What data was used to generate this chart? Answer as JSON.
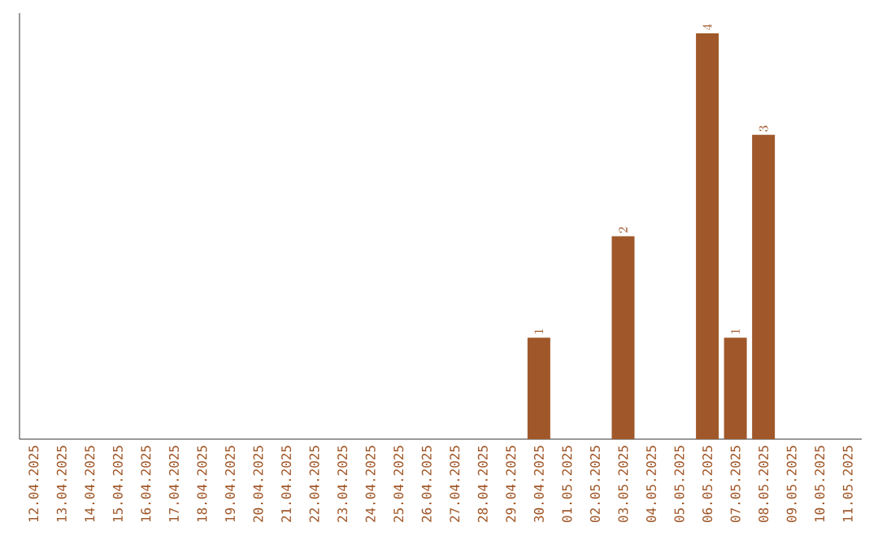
{
  "chart_data": {
    "type": "bar",
    "categories": [
      "12.04.2025",
      "13.04.2025",
      "14.04.2025",
      "15.04.2025",
      "16.04.2025",
      "17.04.2025",
      "18.04.2025",
      "19.04.2025",
      "20.04.2025",
      "21.04.2025",
      "22.04.2025",
      "23.04.2025",
      "24.04.2025",
      "25.04.2025",
      "26.04.2025",
      "27.04.2025",
      "28.04.2025",
      "29.04.2025",
      "30.04.2025",
      "01.05.2025",
      "02.05.2025",
      "03.05.2025",
      "04.05.2025",
      "05.05.2025",
      "06.05.2025",
      "07.05.2025",
      "08.05.2025",
      "09.05.2025",
      "10.05.2025",
      "11.05.2025"
    ],
    "values": [
      null,
      null,
      null,
      null,
      null,
      null,
      null,
      null,
      null,
      null,
      null,
      null,
      null,
      null,
      null,
      null,
      null,
      null,
      1,
      null,
      null,
      2,
      null,
      null,
      4,
      1,
      3,
      null,
      null,
      null
    ],
    "data_labels": true,
    "color": "#a0582a"
  }
}
